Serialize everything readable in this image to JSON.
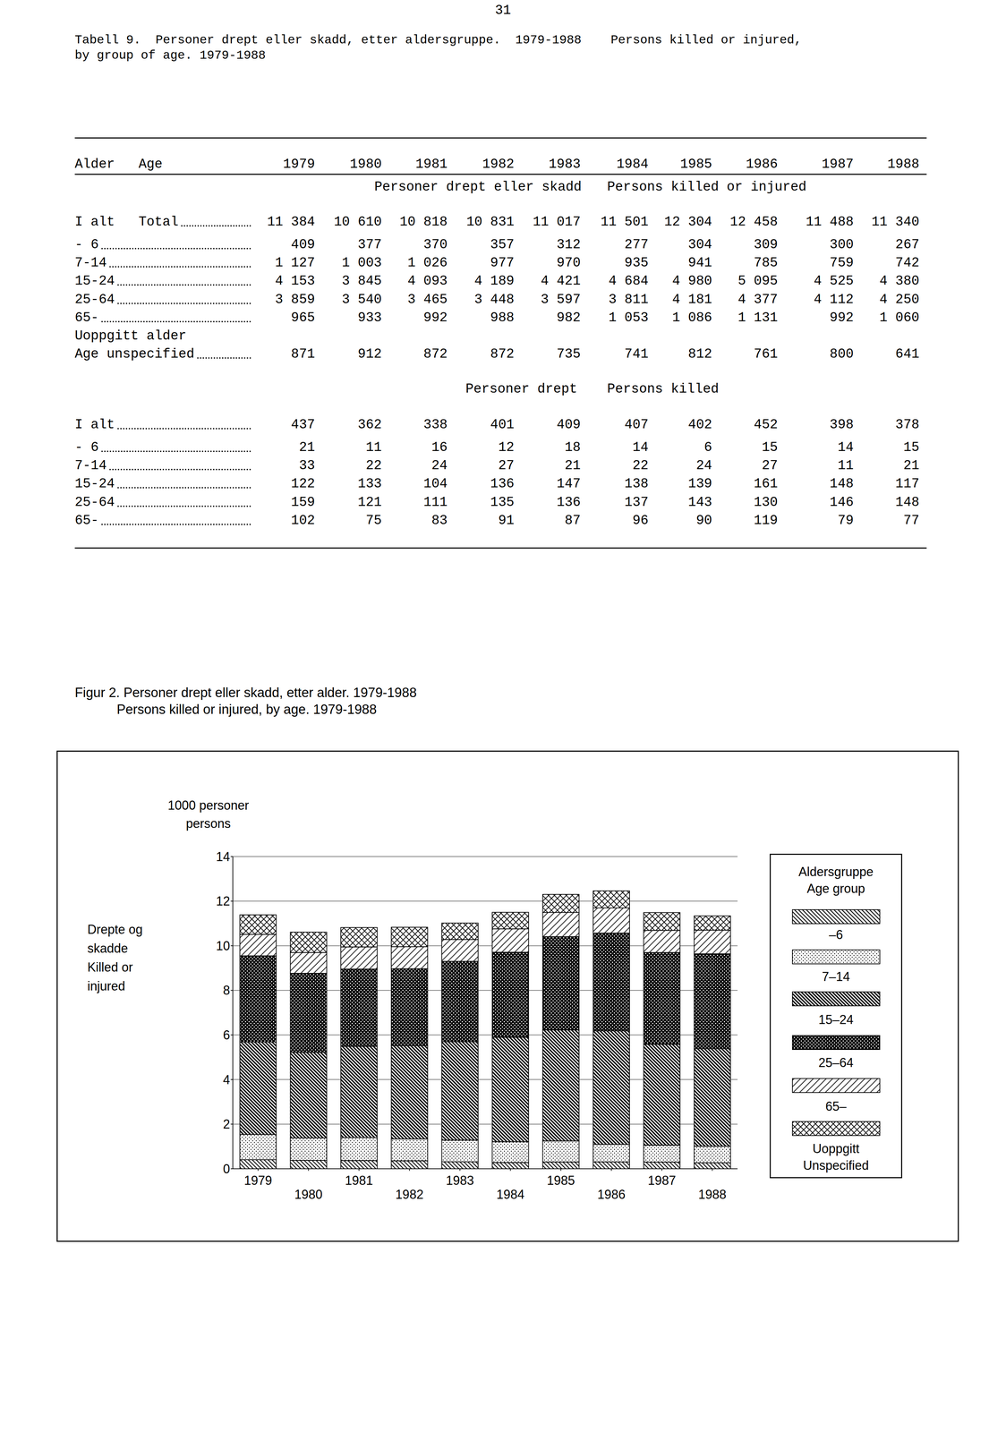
{
  "page_number": "31",
  "table": {
    "title": [
      "Tabell 9.  Personer drept eller skadd, etter aldersgruppe.  1979-1988    Persons killed or injured,",
      "by group of age. 1979-1988"
    ],
    "header": {
      "label": "Alder   Age",
      "years": [
        "1979",
        "1980",
        "1981",
        "1982",
        "1983",
        "1984",
        "1985",
        "1986",
        "1987",
        "1988"
      ]
    },
    "sections": [
      {
        "heading": [
          "Personer drept eller skadd",
          "Persons killed or injured"
        ],
        "rows": [
          {
            "label": "I alt   Total",
            "values": [
              "11 384",
              "10 610",
              "10 818",
              "10 831",
              "11 017",
              "11 501",
              "12 304",
              "12 458",
              "11 488",
              "11 340"
            ]
          },
          {
            "label": "- 6",
            "values": [
              "409",
              "377",
              "370",
              "357",
              "312",
              "277",
              "304",
              "309",
              "300",
              "267"
            ]
          },
          {
            "label": "7-14",
            "values": [
              "1 127",
              "1 003",
              "1 026",
              "977",
              "970",
              "935",
              "941",
              "785",
              "759",
              "742"
            ]
          },
          {
            "label": "15-24",
            "values": [
              "4 153",
              "3 845",
              "4 093",
              "4 189",
              "4 421",
              "4 684",
              "4 980",
              "5 095",
              "4 525",
              "4 380"
            ]
          },
          {
            "label": "25-64",
            "values": [
              "3 859",
              "3 540",
              "3 465",
              "3 448",
              "3 597",
              "3 811",
              "4 181",
              "4 377",
              "4 112",
              "4 250"
            ]
          },
          {
            "label": "65-",
            "values": [
              "965",
              "933",
              "992",
              "988",
              "982",
              "1 053",
              "1 086",
              "1 131",
              "992",
              "1 060"
            ]
          },
          {
            "label": "Uoppgitt alder\nAge unspecified",
            "values": [
              "871",
              "912",
              "872",
              "872",
              "735",
              "741",
              "812",
              "761",
              "800",
              "641"
            ]
          }
        ]
      },
      {
        "heading": [
          "Personer drept",
          "Persons killed"
        ],
        "rows": [
          {
            "label": "I alt",
            "values": [
              "437",
              "362",
              "338",
              "401",
              "409",
              "407",
              "402",
              "452",
              "398",
              "378"
            ]
          },
          {
            "label": "- 6",
            "values": [
              "21",
              "11",
              "16",
              "12",
              "18",
              "14",
              "6",
              "15",
              "14",
              "15"
            ]
          },
          {
            "label": "7-14",
            "values": [
              "33",
              "22",
              "24",
              "27",
              "21",
              "22",
              "24",
              "27",
              "11",
              "21"
            ]
          },
          {
            "label": "15-24",
            "values": [
              "122",
              "133",
              "104",
              "136",
              "147",
              "138",
              "139",
              "161",
              "148",
              "117"
            ]
          },
          {
            "label": "25-64",
            "values": [
              "159",
              "121",
              "111",
              "135",
              "136",
              "137",
              "143",
              "130",
              "146",
              "148"
            ]
          },
          {
            "label": "65-",
            "values": [
              "102",
              "75",
              "83",
              "91",
              "87",
              "96",
              "90",
              "119",
              "79",
              "77"
            ]
          }
        ]
      }
    ]
  },
  "figure_caption": [
    "Figur 2. Personer drept eller skadd, etter alder. 1979-1988",
    "Persons killed or injured, by age. 1979-1988"
  ],
  "chart_data": {
    "type": "bar",
    "stacked": true,
    "grid": true,
    "y_label": "Drepte og\nskadde\nKilled or\ninjured",
    "annotations": [
      "1000 personer\npersons"
    ],
    "legend_title": "Aldersgruppe\nAge group",
    "categories": [
      "1979",
      "1980",
      "1981",
      "1982",
      "1983",
      "1984",
      "1985",
      "1986",
      "1987",
      "1988"
    ],
    "ylim": [
      0,
      14
    ],
    "yticks": [
      0,
      2,
      4,
      6,
      8,
      10,
      12,
      14
    ],
    "series": [
      {
        "name": "–6",
        "color": "#000000",
        "values": [
          0.409,
          0.377,
          0.37,
          0.357,
          0.312,
          0.277,
          0.304,
          0.309,
          0.3,
          0.267
        ]
      },
      {
        "name": "7–14",
        "color": "#000000",
        "values": [
          1.127,
          1.003,
          1.026,
          0.977,
          0.97,
          0.935,
          0.941,
          0.785,
          0.759,
          0.742
        ]
      },
      {
        "name": "15–24",
        "color": "#000000",
        "values": [
          4.153,
          3.845,
          4.093,
          4.189,
          4.421,
          4.684,
          4.98,
          5.095,
          4.525,
          4.38
        ]
      },
      {
        "name": "25–64",
        "color": "#000000",
        "values": [
          3.859,
          3.54,
          3.465,
          3.448,
          3.597,
          3.811,
          4.181,
          4.377,
          4.112,
          4.25
        ]
      },
      {
        "name": "65–",
        "color": "#000000",
        "values": [
          0.965,
          0.933,
          0.992,
          0.988,
          0.982,
          1.053,
          1.086,
          1.131,
          0.992,
          1.06
        ]
      },
      {
        "name": "Uoppgitt\nUnspecified",
        "color": "#000000",
        "values": [
          0.871,
          0.912,
          0.872,
          0.872,
          0.735,
          0.741,
          0.812,
          0.761,
          0.8,
          0.641
        ]
      }
    ]
  }
}
